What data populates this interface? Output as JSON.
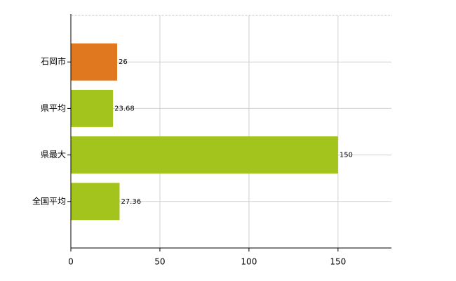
{
  "chart_data": {
    "type": "bar",
    "orientation": "horizontal",
    "categories": [
      "石岡市",
      "県平均",
      "県最大",
      "全国平均"
    ],
    "values": [
      26,
      23.68,
      150,
      27.36
    ],
    "colors": [
      "#e07820",
      "#a3c41c",
      "#a3c41c",
      "#a3c41c"
    ],
    "xlim": [
      0,
      180
    ],
    "xticks": [
      0,
      50,
      100,
      150
    ],
    "grid": true
  }
}
